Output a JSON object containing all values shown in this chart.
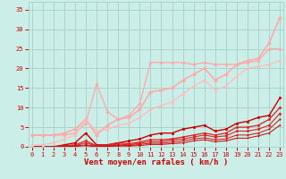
{
  "xlabel": "Vent moyen/en rafales ( km/h )",
  "bg_color": "#cceee8",
  "grid_color": "#aad4ce",
  "x": [
    0,
    1,
    2,
    3,
    4,
    5,
    6,
    7,
    8,
    9,
    10,
    11,
    12,
    13,
    14,
    15,
    16,
    17,
    18,
    19,
    20,
    21,
    22,
    23
  ],
  "series": [
    {
      "y": [
        0.0,
        0.0,
        0.0,
        0.5,
        1.0,
        3.5,
        0.5,
        0.5,
        1.0,
        1.5,
        2.0,
        3.0,
        3.5,
        3.5,
        4.5,
        5.0,
        5.5,
        4.0,
        4.5,
        6.0,
        6.5,
        7.5,
        8.0,
        12.5
      ],
      "color": "#cc0000",
      "lw": 1.0,
      "marker": "s",
      "ms": 1.8
    },
    {
      "y": [
        0.0,
        0.0,
        0.0,
        0.3,
        0.5,
        1.5,
        0.3,
        0.5,
        1.0,
        0.8,
        1.2,
        1.8,
        1.8,
        2.0,
        2.5,
        3.0,
        3.5,
        3.0,
        3.5,
        5.0,
        5.0,
        5.5,
        7.0,
        10.0
      ],
      "color": "#dd2222",
      "lw": 0.9,
      "marker": "p",
      "ms": 1.8
    },
    {
      "y": [
        0.0,
        0.0,
        0.0,
        0.2,
        0.3,
        1.0,
        0.2,
        0.3,
        0.7,
        0.5,
        0.9,
        1.3,
        1.3,
        1.7,
        2.0,
        2.5,
        3.0,
        2.5,
        2.8,
        4.0,
        4.0,
        4.5,
        5.5,
        8.5
      ],
      "color": "#dd2222",
      "lw": 0.8,
      "marker": "D",
      "ms": 1.5
    },
    {
      "y": [
        0.0,
        0.0,
        0.0,
        0.1,
        0.2,
        0.5,
        0.1,
        0.2,
        0.4,
        0.3,
        0.6,
        0.9,
        0.9,
        1.2,
        1.5,
        2.0,
        2.3,
        1.8,
        2.0,
        3.0,
        3.0,
        3.5,
        4.5,
        7.0
      ],
      "color": "#cc1111",
      "lw": 0.7,
      "marker": ".",
      "ms": 2.0
    },
    {
      "y": [
        0.0,
        0.0,
        0.0,
        0.0,
        0.1,
        0.3,
        0.0,
        0.1,
        0.2,
        0.2,
        0.3,
        0.6,
        0.6,
        0.8,
        1.0,
        1.5,
        1.8,
        1.3,
        1.5,
        2.2,
        2.2,
        2.8,
        3.5,
        5.5
      ],
      "color": "#cc0000",
      "lw": 0.7,
      "marker": ".",
      "ms": 1.5
    },
    {
      "y": [
        3.0,
        3.0,
        3.0,
        3.5,
        4.5,
        7.0,
        3.0,
        5.5,
        7.0,
        7.5,
        9.5,
        14.0,
        14.5,
        15.0,
        17.0,
        18.5,
        20.0,
        17.0,
        18.5,
        21.0,
        22.0,
        22.5,
        26.5,
        33.0
      ],
      "color": "#ffaaaa",
      "lw": 1.2,
      "marker": "D",
      "ms": 2.0
    },
    {
      "y": [
        3.0,
        3.0,
        3.0,
        3.0,
        3.5,
        6.0,
        16.0,
        9.0,
        7.0,
        8.0,
        11.0,
        21.5,
        21.5,
        21.5,
        21.5,
        21.0,
        21.5,
        21.0,
        21.0,
        21.0,
        21.5,
        22.0,
        25.0,
        25.0
      ],
      "color": "#ffaaaa",
      "lw": 1.0,
      "marker": "o",
      "ms": 2.0
    },
    {
      "y": [
        0.5,
        0.5,
        1.0,
        2.0,
        3.0,
        7.0,
        4.0,
        4.5,
        5.5,
        6.0,
        7.5,
        9.5,
        10.5,
        11.5,
        13.5,
        15.5,
        17.0,
        14.5,
        15.5,
        18.0,
        20.0,
        20.5,
        21.0,
        22.0
      ],
      "color": "#ffbbbb",
      "lw": 0.9,
      "marker": "^",
      "ms": 2.0
    }
  ],
  "xlim": [
    -0.3,
    23.3
  ],
  "ylim": [
    0,
    37
  ],
  "yticks": [
    0,
    5,
    10,
    15,
    20,
    25,
    30,
    35
  ],
  "xticks": [
    0,
    1,
    2,
    3,
    4,
    5,
    6,
    7,
    8,
    9,
    10,
    11,
    12,
    13,
    14,
    15,
    16,
    17,
    18,
    19,
    20,
    21,
    22,
    23
  ],
  "tick_color": "#cc0000",
  "tick_fontsize": 5.0,
  "xlabel_fontsize": 6.5,
  "xlabel_color": "#cc0000",
  "xlabel_bold": true
}
